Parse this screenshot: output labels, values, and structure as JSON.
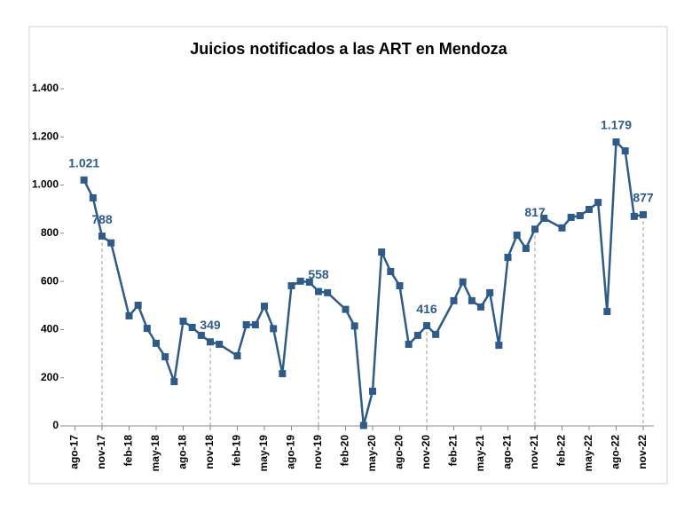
{
  "chart_data": {
    "type": "line",
    "title": "Juicios notificados a las ART en Mendoza",
    "x": [
      "2017-09",
      "2017-10",
      "2017-11",
      "2017-12",
      "2018-02",
      "2018-03",
      "2018-04",
      "2018-05",
      "2018-06",
      "2018-07",
      "2018-08",
      "2018-09",
      "2018-10",
      "2018-11",
      "2018-12",
      "2019-02",
      "2019-03",
      "2019-04",
      "2019-05",
      "2019-06",
      "2019-07",
      "2019-08",
      "2019-09",
      "2019-10",
      "2019-11",
      "2019-12",
      "2020-02",
      "2020-03",
      "2020-04",
      "2020-05",
      "2020-06",
      "2020-07",
      "2020-08",
      "2020-09",
      "2020-10",
      "2020-11",
      "2020-12",
      "2021-02",
      "2021-03",
      "2021-04",
      "2021-05",
      "2021-06",
      "2021-07",
      "2021-08",
      "2021-09",
      "2021-10",
      "2021-11",
      "2021-12",
      "2022-02",
      "2022-03",
      "2022-04",
      "2022-05",
      "2022-06",
      "2022-07",
      "2022-08",
      "2022-09",
      "2022-10",
      "2022-11"
    ],
    "values": [
      1021,
      947,
      788,
      760,
      457,
      501,
      405,
      343,
      287,
      184,
      435,
      409,
      376,
      349,
      339,
      291,
      420,
      420,
      497,
      404,
      217,
      582,
      601,
      597,
      558,
      553,
      484,
      415,
      2,
      144,
      722,
      641,
      582,
      339,
      376,
      416,
      380,
      520,
      598,
      520,
      494,
      553,
      335,
      700,
      792,
      737,
      817,
      862,
      822,
      866,
      873,
      899,
      928,
      475,
      1179,
      1142,
      870,
      877
    ],
    "value_labels": [
      "1.021",
      null,
      "788",
      null,
      null,
      null,
      null,
      null,
      null,
      null,
      null,
      null,
      null,
      "349",
      null,
      null,
      null,
      null,
      null,
      null,
      null,
      null,
      null,
      null,
      "558",
      null,
      null,
      null,
      null,
      null,
      null,
      null,
      null,
      null,
      null,
      "416",
      null,
      null,
      null,
      null,
      null,
      null,
      null,
      null,
      null,
      null,
      "817",
      null,
      null,
      null,
      null,
      null,
      null,
      null,
      "1.179",
      null,
      null,
      "877"
    ],
    "color": "#2f5b88",
    "xticks": [
      {
        "value": "2017-08",
        "label": "ago-17"
      },
      {
        "value": "2017-11",
        "label": "nov-17"
      },
      {
        "value": "2018-02",
        "label": "feb-18"
      },
      {
        "value": "2018-05",
        "label": "may-18"
      },
      {
        "value": "2018-08",
        "label": "ago-18"
      },
      {
        "value": "2018-11",
        "label": "nov-18"
      },
      {
        "value": "2019-02",
        "label": "feb-19"
      },
      {
        "value": "2019-05",
        "label": "may-19"
      },
      {
        "value": "2019-08",
        "label": "ago-19"
      },
      {
        "value": "2019-11",
        "label": "nov-19"
      },
      {
        "value": "2020-02",
        "label": "feb-20"
      },
      {
        "value": "2020-05",
        "label": "may-20"
      },
      {
        "value": "2020-08",
        "label": "ago-20"
      },
      {
        "value": "2020-11",
        "label": "nov-20"
      },
      {
        "value": "2021-02",
        "label": "feb-21"
      },
      {
        "value": "2021-05",
        "label": "may-21"
      },
      {
        "value": "2021-08",
        "label": "ago-21"
      },
      {
        "value": "2021-11",
        "label": "nov-21"
      },
      {
        "value": "2022-02",
        "label": "feb-22"
      },
      {
        "value": "2022-05",
        "label": "may-22"
      },
      {
        "value": "2022-08",
        "label": "ago-22"
      },
      {
        "value": "2022-11",
        "label": "nov-22"
      }
    ],
    "ylim": [
      0,
      1400
    ],
    "yticks": [
      0,
      200,
      400,
      600,
      800,
      {
        "value": 1000,
        "label": "1.000"
      },
      {
        "value": 1200,
        "label": "1.200"
      },
      {
        "value": 1400,
        "label": "1.400"
      }
    ]
  }
}
